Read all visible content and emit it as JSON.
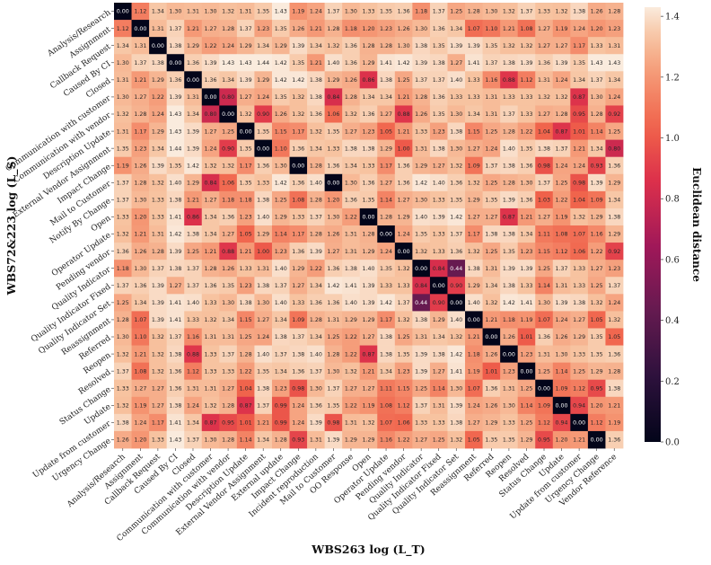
{
  "chart_data": {
    "type": "heatmap",
    "xlabel": "WBS263 log (L_T)",
    "ylabel": "WBS72&223 log (L_S)",
    "colorbar_label": "Euclidean distance",
    "colorbar_range": [
      0.0,
      1.43
    ],
    "colorbar_ticks": [
      "0.0",
      "0.2",
      "0.4",
      "0.6",
      "0.8",
      "1.0",
      "1.2",
      "1.4"
    ],
    "colorbar_tick_values": [
      0.0,
      0.2,
      0.4,
      0.6,
      0.8,
      1.0,
      1.2,
      1.4
    ],
    "x_categories": [
      "Analysis/Research",
      "Assignment",
      "Callback Request",
      "Caused By CI",
      "Closed",
      "Communication with customer",
      "Communication with vendor",
      "Description Update",
      "External Vendor Assignment",
      "External update",
      "Impact Change",
      "Incident reproduction",
      "Mail to Customer",
      "OO Response",
      "Open",
      "Operator Update",
      "Pending vendor",
      "Quality Indicator",
      "Quality Indicator Fixed",
      "Quality Indicator Set",
      "Reassignment",
      "Referred",
      "Reopen",
      "Resolved",
      "Status Change",
      "Update",
      "Update from customer",
      "Urgency Change",
      "Vendor Reference"
    ],
    "y_categories": [
      "Analysis/Research",
      "Assignment",
      "Callback Request",
      "Caused By CI",
      "Closed",
      "Communication with customer",
      "Communication with vendor",
      "Description Update",
      "External Vendor Assignment",
      "Impact Change",
      "Mail to Customer",
      "Notify By Change",
      "Open",
      "Operator Update",
      "Pending vendor",
      "Quality Indicator",
      "Quality Indicator Fixed",
      "Quality Indicator Set",
      "Reassignment",
      "Referred",
      "Reopen",
      "Resolved",
      "Status Change",
      "Update",
      "Update from customer",
      "Urgency Change"
    ],
    "values": [
      [
        "0.00",
        "1.12",
        "1.34",
        "1.30",
        "1.31",
        "1.30",
        "1.32",
        "1.31",
        "1.35",
        "1.43",
        "1.19",
        "1.24",
        "1.37",
        "1.30",
        "1.33",
        "1.35",
        "1.36",
        "1.18",
        "1.37",
        "1.25",
        "1.28",
        "1.30",
        "1.32",
        "1.37",
        "1.33",
        "1.32",
        "1.38",
        "1.26",
        "1.28"
      ],
      [
        "1.12",
        "0.00",
        "1.31",
        "1.37",
        "1.21",
        "1.27",
        "1.28",
        "1.37",
        "1.23",
        "1.35",
        "1.26",
        "1.21",
        "1.28",
        "1.18",
        "1.20",
        "1.23",
        "1.26",
        "1.30",
        "1.36",
        "1.34",
        "1.07",
        "1.10",
        "1.21",
        "1.08",
        "1.27",
        "1.19",
        "1.24",
        "1.20",
        "1.23"
      ],
      [
        "1.34",
        "1.31",
        "0.00",
        "1.38",
        "1.29",
        "1.22",
        "1.24",
        "1.29",
        "1.34",
        "1.29",
        "1.39",
        "1.34",
        "1.32",
        "1.36",
        "1.28",
        "1.28",
        "1.30",
        "1.38",
        "1.35",
        "1.39",
        "1.39",
        "1.35",
        "1.32",
        "1.32",
        "1.27",
        "1.27",
        "1.17",
        "1.33",
        "1.31"
      ],
      [
        "1.30",
        "1.37",
        "1.38",
        "0.00",
        "1.36",
        "1.39",
        "1.43",
        "1.43",
        "1.44",
        "1.42",
        "1.35",
        "1.21",
        "1.40",
        "1.36",
        "1.29",
        "1.41",
        "1.42",
        "1.39",
        "1.38",
        "1.27",
        "1.41",
        "1.37",
        "1.38",
        "1.39",
        "1.36",
        "1.39",
        "1.35",
        "1.43",
        "1.43"
      ],
      [
        "1.31",
        "1.21",
        "1.29",
        "1.36",
        "0.00",
        "1.36",
        "1.34",
        "1.39",
        "1.29",
        "1.42",
        "1.42",
        "1.38",
        "1.29",
        "1.26",
        "0.86",
        "1.38",
        "1.25",
        "1.37",
        "1.37",
        "1.40",
        "1.33",
        "1.16",
        "0.88",
        "1.12",
        "1.31",
        "1.24",
        "1.34",
        "1.37",
        "1.34"
      ],
      [
        "1.30",
        "1.27",
        "1.22",
        "1.39",
        "1.31",
        "0.00",
        "0.80",
        "1.27",
        "1.24",
        "1.35",
        "1.32",
        "1.38",
        "0.84",
        "1.28",
        "1.34",
        "1.34",
        "1.21",
        "1.28",
        "1.36",
        "1.33",
        "1.33",
        "1.31",
        "1.33",
        "1.33",
        "1.32",
        "1.32",
        "0.87",
        "1.30",
        "1.24"
      ],
      [
        "1.32",
        "1.28",
        "1.24",
        "1.43",
        "1.34",
        "0.80",
        "0.00",
        "1.32",
        "0.90",
        "1.26",
        "1.32",
        "1.36",
        "1.06",
        "1.32",
        "1.36",
        "1.27",
        "0.88",
        "1.26",
        "1.35",
        "1.30",
        "1.34",
        "1.31",
        "1.37",
        "1.33",
        "1.27",
        "1.28",
        "0.95",
        "1.28",
        "0.92"
      ],
      [
        "1.31",
        "1.17",
        "1.29",
        "1.43",
        "1.39",
        "1.27",
        "1.25",
        "0.00",
        "1.35",
        "1.15",
        "1.17",
        "1.32",
        "1.35",
        "1.27",
        "1.23",
        "1.05",
        "1.21",
        "1.33",
        "1.23",
        "1.38",
        "1.15",
        "1.25",
        "1.28",
        "1.22",
        "1.04",
        "0.87",
        "1.01",
        "1.14",
        "1.25"
      ],
      [
        "1.35",
        "1.23",
        "1.34",
        "1.44",
        "1.39",
        "1.24",
        "0.90",
        "1.35",
        "0.00",
        "1.10",
        "1.36",
        "1.34",
        "1.33",
        "1.38",
        "1.38",
        "1.29",
        "1.00",
        "1.31",
        "1.38",
        "1.30",
        "1.27",
        "1.24",
        "1.40",
        "1.35",
        "1.38",
        "1.37",
        "1.21",
        "1.34",
        "0.80"
      ],
      [
        "1.19",
        "1.26",
        "1.39",
        "1.35",
        "1.42",
        "1.32",
        "1.32",
        "1.17",
        "1.36",
        "1.30",
        "0.00",
        "1.28",
        "1.36",
        "1.34",
        "1.33",
        "1.17",
        "1.36",
        "1.29",
        "1.27",
        "1.32",
        "1.09",
        "1.37",
        "1.38",
        "1.36",
        "0.98",
        "1.24",
        "1.24",
        "0.93",
        "1.36"
      ],
      [
        "1.37",
        "1.28",
        "1.32",
        "1.40",
        "1.29",
        "0.84",
        "1.06",
        "1.35",
        "1.33",
        "1.42",
        "1.36",
        "1.40",
        "0.00",
        "1.30",
        "1.36",
        "1.27",
        "1.36",
        "1.42",
        "1.40",
        "1.36",
        "1.32",
        "1.25",
        "1.28",
        "1.30",
        "1.37",
        "1.25",
        "0.98",
        "1.39",
        "1.29"
      ],
      [
        "1.37",
        "1.30",
        "1.33",
        "1.38",
        "1.21",
        "1.27",
        "1.18",
        "1.18",
        "1.38",
        "1.25",
        "1.08",
        "1.28",
        "1.20",
        "1.36",
        "1.35",
        "1.14",
        "1.27",
        "1.30",
        "1.33",
        "1.35",
        "1.29",
        "1.35",
        "1.39",
        "1.36",
        "1.03",
        "1.22",
        "1.04",
        "1.09",
        "1.34"
      ],
      [
        "1.33",
        "1.20",
        "1.33",
        "1.41",
        "0.86",
        "1.34",
        "1.36",
        "1.23",
        "1.40",
        "1.29",
        "1.33",
        "1.37",
        "1.30",
        "1.22",
        "0.00",
        "1.28",
        "1.29",
        "1.40",
        "1.39",
        "1.42",
        "1.27",
        "1.27",
        "0.87",
        "1.21",
        "1.27",
        "1.19",
        "1.32",
        "1.29",
        "1.38"
      ],
      [
        "1.32",
        "1.21",
        "1.31",
        "1.42",
        "1.38",
        "1.34",
        "1.27",
        "1.05",
        "1.29",
        "1.14",
        "1.17",
        "1.28",
        "1.26",
        "1.31",
        "1.28",
        "0.00",
        "1.24",
        "1.35",
        "1.33",
        "1.37",
        "1.17",
        "1.38",
        "1.38",
        "1.34",
        "1.11",
        "1.08",
        "1.07",
        "1.16",
        "1.29"
      ],
      [
        "1.36",
        "1.26",
        "1.28",
        "1.39",
        "1.25",
        "1.21",
        "0.88",
        "1.21",
        "1.00",
        "1.23",
        "1.36",
        "1.39",
        "1.27",
        "1.31",
        "1.29",
        "1.24",
        "0.00",
        "1.32",
        "1.33",
        "1.36",
        "1.32",
        "1.25",
        "1.35",
        "1.23",
        "1.15",
        "1.12",
        "1.06",
        "1.22",
        "0.92"
      ],
      [
        "1.18",
        "1.30",
        "1.37",
        "1.38",
        "1.37",
        "1.28",
        "1.26",
        "1.33",
        "1.31",
        "1.40",
        "1.29",
        "1.22",
        "1.36",
        "1.38",
        "1.40",
        "1.35",
        "1.32",
        "0.00",
        "0.84",
        "0.44",
        "1.38",
        "1.31",
        "1.39",
        "1.39",
        "1.25",
        "1.37",
        "1.33",
        "1.27",
        "1.23"
      ],
      [
        "1.37",
        "1.36",
        "1.39",
        "1.27",
        "1.37",
        "1.36",
        "1.35",
        "1.23",
        "1.38",
        "1.37",
        "1.27",
        "1.34",
        "1.42",
        "1.41",
        "1.39",
        "1.33",
        "1.33",
        "0.84",
        "0.00",
        "0.90",
        "1.29",
        "1.34",
        "1.38",
        "1.33",
        "1.14",
        "1.31",
        "1.33",
        "1.25",
        "1.37"
      ],
      [
        "1.25",
        "1.34",
        "1.39",
        "1.41",
        "1.40",
        "1.33",
        "1.30",
        "1.38",
        "1.30",
        "1.40",
        "1.33",
        "1.36",
        "1.36",
        "1.40",
        "1.39",
        "1.42",
        "1.37",
        "0.44",
        "0.90",
        "0.00",
        "1.40",
        "1.32",
        "1.42",
        "1.41",
        "1.30",
        "1.39",
        "1.38",
        "1.32",
        "1.24"
      ],
      [
        "1.28",
        "1.07",
        "1.39",
        "1.41",
        "1.33",
        "1.32",
        "1.34",
        "1.15",
        "1.27",
        "1.34",
        "1.09",
        "1.28",
        "1.31",
        "1.29",
        "1.29",
        "1.17",
        "1.32",
        "1.38",
        "1.29",
        "1.40",
        "0.00",
        "1.21",
        "1.18",
        "1.19",
        "1.07",
        "1.24",
        "1.27",
        "1.05",
        "1.32"
      ],
      [
        "1.30",
        "1.10",
        "1.32",
        "1.37",
        "1.16",
        "1.31",
        "1.31",
        "1.25",
        "1.24",
        "1.38",
        "1.37",
        "1.34",
        "1.25",
        "1.22",
        "1.27",
        "1.38",
        "1.25",
        "1.31",
        "1.34",
        "1.32",
        "1.21",
        "0.00",
        "1.26",
        "1.01",
        "1.36",
        "1.26",
        "1.29",
        "1.35",
        "1.05"
      ],
      [
        "1.32",
        "1.21",
        "1.32",
        "1.38",
        "0.88",
        "1.33",
        "1.37",
        "1.28",
        "1.40",
        "1.37",
        "1.38",
        "1.40",
        "1.28",
        "1.22",
        "0.87",
        "1.38",
        "1.35",
        "1.39",
        "1.38",
        "1.42",
        "1.18",
        "1.26",
        "0.00",
        "1.23",
        "1.31",
        "1.30",
        "1.33",
        "1.35",
        "1.36"
      ],
      [
        "1.37",
        "1.08",
        "1.32",
        "1.36",
        "1.12",
        "1.33",
        "1.33",
        "1.22",
        "1.35",
        "1.34",
        "1.36",
        "1.37",
        "1.30",
        "1.32",
        "1.21",
        "1.34",
        "1.23",
        "1.39",
        "1.27",
        "1.41",
        "1.19",
        "1.01",
        "1.23",
        "0.00",
        "1.25",
        "1.14",
        "1.25",
        "1.29",
        "1.28"
      ],
      [
        "1.33",
        "1.27",
        "1.27",
        "1.36",
        "1.31",
        "1.31",
        "1.27",
        "1.04",
        "1.38",
        "1.23",
        "0.98",
        "1.30",
        "1.37",
        "1.27",
        "1.27",
        "1.11",
        "1.15",
        "1.25",
        "1.14",
        "1.30",
        "1.07",
        "1.36",
        "1.31",
        "1.25",
        "0.00",
        "1.09",
        "1.12",
        "0.95",
        "1.38"
      ],
      [
        "1.32",
        "1.19",
        "1.27",
        "1.38",
        "1.24",
        "1.32",
        "1.28",
        "0.87",
        "1.37",
        "0.99",
        "1.24",
        "1.36",
        "1.35",
        "1.22",
        "1.19",
        "1.08",
        "1.12",
        "1.37",
        "1.31",
        "1.39",
        "1.24",
        "1.26",
        "1.30",
        "1.14",
        "1.09",
        "0.00",
        "0.94",
        "1.20",
        "1.21"
      ],
      [
        "1.38",
        "1.24",
        "1.17",
        "1.41",
        "1.34",
        "0.87",
        "0.95",
        "1.01",
        "1.21",
        "0.99",
        "1.24",
        "1.39",
        "0.98",
        "1.31",
        "1.32",
        "1.07",
        "1.06",
        "1.33",
        "1.33",
        "1.38",
        "1.27",
        "1.29",
        "1.33",
        "1.25",
        "1.12",
        "0.94",
        "0.00",
        "1.12",
        "1.19"
      ],
      [
        "1.26",
        "1.20",
        "1.33",
        "1.43",
        "1.37",
        "1.30",
        "1.28",
        "1.14",
        "1.34",
        "1.28",
        "0.93",
        "1.31",
        "1.39",
        "1.29",
        "1.29",
        "1.16",
        "1.22",
        "1.27",
        "1.25",
        "1.32",
        "1.05",
        "1.35",
        "1.35",
        "1.29",
        "0.95",
        "1.20",
        "1.21",
        "0.00",
        "1.36"
      ]
    ]
  }
}
